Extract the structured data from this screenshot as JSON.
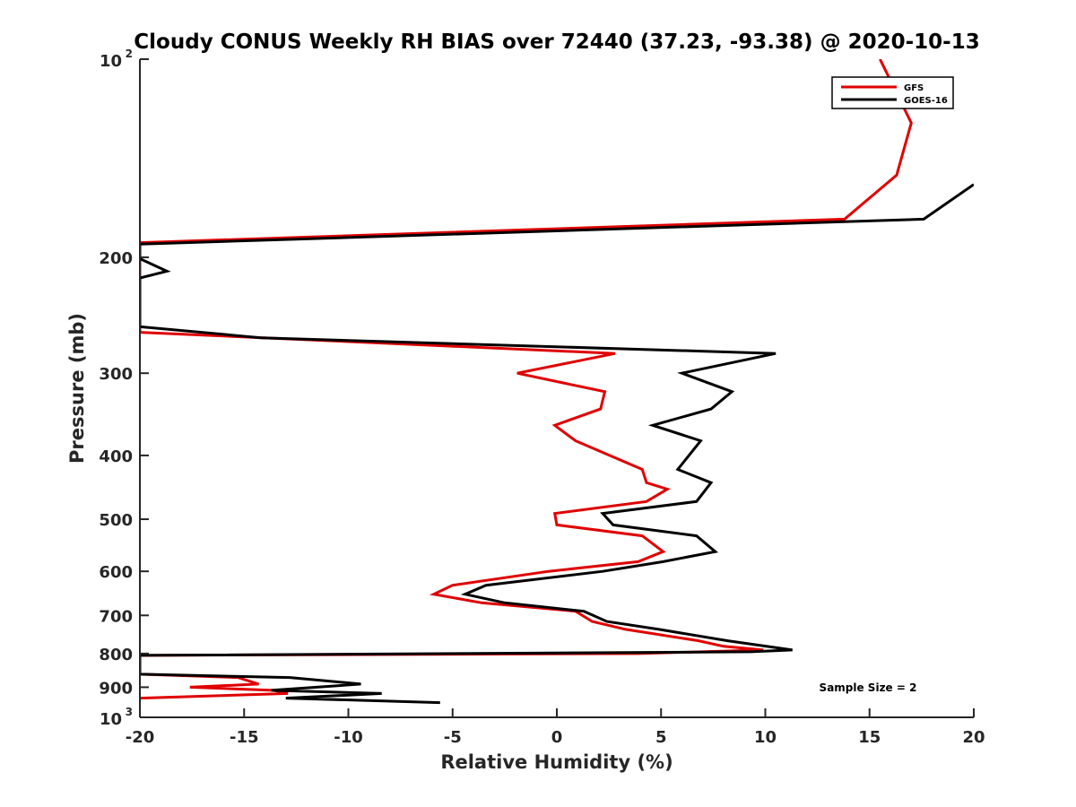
{
  "chart_data": {
    "type": "line",
    "title": "Cloudy CONUS Weekly RH BIAS over 72440 (37.23, -93.38) @ 2020-10-13",
    "xlabel": "Relative Humidity (%)",
    "ylabel": "Pressure (mb)",
    "xlim": [
      -20,
      20
    ],
    "ylim": [
      100,
      1000
    ],
    "yscale": "log",
    "y_reversed": true,
    "xticks": [
      "-20",
      "-15",
      "-10",
      "-5",
      "0",
      "5",
      "10",
      "15",
      "20"
    ],
    "yticks": [
      {
        "base": "10",
        "sup": "2",
        "value": 100
      },
      {
        "base": "200",
        "sup": "",
        "value": 200
      },
      {
        "base": "300",
        "sup": "",
        "value": 300
      },
      {
        "base": "400",
        "sup": "",
        "value": 400
      },
      {
        "base": "500",
        "sup": "",
        "value": 500
      },
      {
        "base": "600",
        "sup": "",
        "value": 600
      },
      {
        "base": "700",
        "sup": "",
        "value": 700
      },
      {
        "base": "800",
        "sup": "",
        "value": 800
      },
      {
        "base": "900",
        "sup": "",
        "value": 900
      },
      {
        "base": "10",
        "sup": "3",
        "value": 1000
      }
    ],
    "grid": false,
    "legend_position": "top-right",
    "annotation": "Sample Size = 2",
    "series": [
      {
        "name": "GFS",
        "color": "#e00000",
        "points": [
          [
            15.5,
            100
          ],
          [
            17.0,
            125
          ],
          [
            16.3,
            150
          ],
          [
            13.8,
            175
          ],
          [
            -20.0,
            190
          ],
          [
            -20.0,
            260
          ],
          [
            2.8,
            280
          ],
          [
            -1.9,
            300
          ],
          [
            2.3,
            320
          ],
          [
            2.1,
            340
          ],
          [
            -0.1,
            360
          ],
          [
            0.9,
            380
          ],
          [
            4.1,
            420
          ],
          [
            4.3,
            440
          ],
          [
            5.3,
            450
          ],
          [
            4.3,
            470
          ],
          [
            -0.1,
            490
          ],
          [
            0.0,
            510
          ],
          [
            4.1,
            530
          ],
          [
            5.1,
            560
          ],
          [
            3.9,
            580
          ],
          [
            -0.4,
            600
          ],
          [
            -5.0,
            630
          ],
          [
            -5.9,
            650
          ],
          [
            -3.6,
            670
          ],
          [
            0.9,
            690
          ],
          [
            1.7,
            715
          ],
          [
            3.3,
            735
          ],
          [
            6.8,
            765
          ],
          [
            8.0,
            780
          ],
          [
            9.9,
            790
          ],
          [
            3.9,
            800
          ],
          [
            -20.0,
            805
          ],
          [
            -20.0,
            860
          ],
          [
            -15.3,
            870
          ],
          [
            -14.3,
            890
          ],
          [
            -17.6,
            900
          ],
          [
            -13.6,
            910
          ],
          [
            -12.9,
            920
          ],
          [
            -20.0,
            935
          ]
        ]
      },
      {
        "name": "GOES-16",
        "color": "#000000",
        "points": [
          [
            20.0,
            155
          ],
          [
            17.6,
            175
          ],
          [
            -20.0,
            191
          ],
          [
            -20.0,
            201
          ],
          [
            -18.7,
            210
          ],
          [
            -20.0,
            215
          ],
          [
            -20.0,
            255
          ],
          [
            -14.2,
            265
          ],
          [
            10.5,
            280
          ],
          [
            6.0,
            300
          ],
          [
            8.4,
            320
          ],
          [
            7.4,
            340
          ],
          [
            4.6,
            360
          ],
          [
            6.9,
            380
          ],
          [
            5.8,
            420
          ],
          [
            7.4,
            440
          ],
          [
            6.7,
            470
          ],
          [
            2.2,
            490
          ],
          [
            2.7,
            510
          ],
          [
            6.7,
            530
          ],
          [
            7.6,
            560
          ],
          [
            5.1,
            580
          ],
          [
            2.2,
            600
          ],
          [
            -3.4,
            630
          ],
          [
            -4.4,
            650
          ],
          [
            -2.5,
            670
          ],
          [
            1.3,
            690
          ],
          [
            2.4,
            715
          ],
          [
            4.9,
            735
          ],
          [
            8.2,
            765
          ],
          [
            11.3,
            790
          ],
          [
            9.3,
            795
          ],
          [
            -20.0,
            805
          ],
          [
            -20.0,
            860
          ],
          [
            -12.8,
            870
          ],
          [
            -9.4,
            890
          ],
          [
            -13.7,
            910
          ],
          [
            -8.4,
            920
          ],
          [
            -13.0,
            935
          ],
          [
            -5.6,
            950
          ]
        ]
      }
    ]
  }
}
